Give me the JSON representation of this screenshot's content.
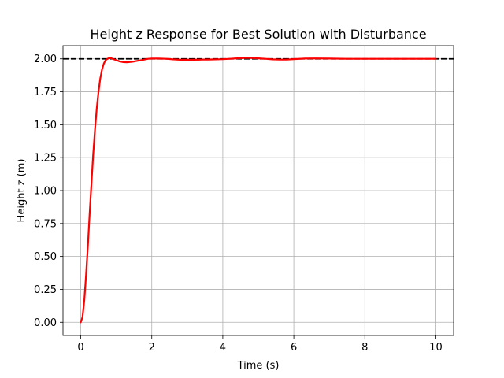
{
  "chart_data": {
    "type": "line",
    "title": "Height z Response for Best Solution with Disturbance",
    "xlabel": "Time (s)",
    "ylabel": "Height z (m)",
    "xlim": [
      -0.5,
      10.5
    ],
    "ylim": [
      -0.1,
      2.1
    ],
    "x_ticks": [
      0,
      2,
      4,
      6,
      8,
      10
    ],
    "x_tick_labels": [
      "0",
      "2",
      "4",
      "6",
      "8",
      "10"
    ],
    "y_ticks": [
      0,
      0.25,
      0.5,
      0.75,
      1.0,
      1.25,
      1.5,
      1.75,
      2.0
    ],
    "y_tick_labels": [
      "0.00",
      "0.25",
      "0.50",
      "0.75",
      "1.00",
      "1.25",
      "1.50",
      "1.75",
      "2.00"
    ],
    "grid": true,
    "reference": {
      "y": 2.0,
      "color": "#000000",
      "style": "dashed"
    },
    "series": [
      {
        "color": "#ff0000",
        "x": [
          0,
          0.05,
          0.1,
          0.15,
          0.2,
          0.25,
          0.3,
          0.35,
          0.4,
          0.45,
          0.5,
          0.55,
          0.6,
          0.65,
          0.7,
          0.75,
          0.8,
          0.85,
          0.9,
          0.95,
          1.0,
          1.05,
          1.1,
          1.2,
          1.3,
          1.4,
          1.5,
          1.6,
          1.7,
          1.8,
          1.9,
          2.0,
          2.2,
          2.4,
          2.6,
          2.8,
          3.0,
          3.2,
          3.4,
          3.6,
          3.8,
          4.0,
          4.2,
          4.4,
          4.6,
          4.8,
          5.0,
          5.2,
          5.4,
          5.6,
          5.8,
          6.0,
          6.3,
          6.6,
          7.0,
          7.5,
          8.0,
          8.5,
          9.0,
          9.5,
          10.0
        ],
        "values": [
          0.0,
          0.04,
          0.17,
          0.36,
          0.58,
          0.82,
          1.05,
          1.27,
          1.46,
          1.62,
          1.75,
          1.85,
          1.92,
          1.965,
          1.99,
          2.0,
          2.005,
          2.005,
          2.0,
          1.995,
          1.99,
          1.985,
          1.98,
          1.975,
          1.974,
          1.976,
          1.98,
          1.985,
          1.99,
          1.995,
          2.0,
          2.002,
          2.002,
          2.0,
          1.996,
          1.993,
          1.993,
          1.993,
          1.994,
          1.995,
          1.996,
          1.997,
          2.0,
          2.004,
          2.006,
          2.006,
          2.004,
          2.0,
          1.996,
          1.994,
          1.995,
          1.998,
          2.002,
          2.003,
          2.002,
          2.0,
          2.0,
          2.0,
          2.0,
          2.0,
          2.0
        ]
      }
    ]
  }
}
